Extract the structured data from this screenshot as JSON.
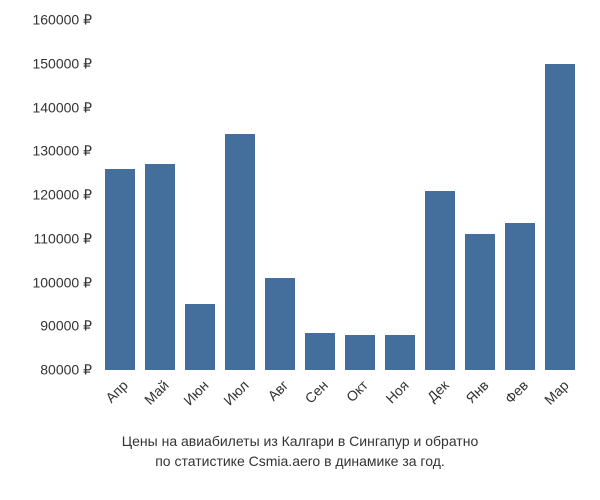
{
  "chart": {
    "type": "bar",
    "categories": [
      "Апр",
      "Май",
      "Июн",
      "Июл",
      "Авг",
      "Сен",
      "Окт",
      "Ноя",
      "Дек",
      "Янв",
      "Фев",
      "Мар"
    ],
    "values": [
      126000,
      127000,
      95000,
      134000,
      101000,
      88500,
      88000,
      88000,
      121000,
      111000,
      113500,
      150000
    ],
    "bar_color": "#446e9b",
    "background_color": "#ffffff",
    "ylim": [
      80000,
      160000
    ],
    "ytick_step": 10000,
    "ytick_labels": [
      "80000 ₽",
      "90000 ₽",
      "100000 ₽",
      "110000 ₽",
      "120000 ₽",
      "130000 ₽",
      "140000 ₽",
      "150000 ₽",
      "160000 ₽"
    ],
    "ytick_values": [
      80000,
      90000,
      100000,
      110000,
      120000,
      130000,
      140000,
      150000,
      160000
    ],
    "bar_width_ratio": 0.75,
    "axis_fontsize": 14,
    "caption_fontsize": 14,
    "text_color": "#333333",
    "caption_line1": "Цены на авиабилеты из Калгари в Сингапур и обратно",
    "caption_line2": "по статистике Csmia.aero в динамике за год."
  }
}
